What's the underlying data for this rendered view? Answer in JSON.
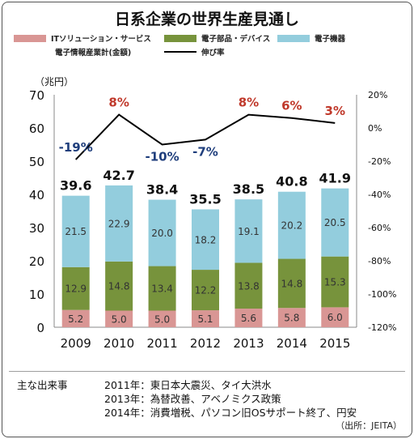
{
  "chart_data": {
    "type": "bar",
    "title": "日系企業の世界生産見通し",
    "y_unit_label": "（兆円）",
    "categories": [
      "2009",
      "2010",
      "2011",
      "2012",
      "2013",
      "2014",
      "2015"
    ],
    "series": [
      {
        "name": "ITソリューション・サービス",
        "color": "#d99694",
        "values": [
          5.2,
          5.0,
          5.0,
          5.1,
          5.6,
          5.8,
          6.0
        ]
      },
      {
        "name": "電子部品・デバイス",
        "color": "#77933c",
        "values": [
          12.9,
          14.8,
          13.4,
          12.2,
          13.8,
          14.8,
          15.3
        ]
      },
      {
        "name": "電子機器",
        "color": "#93cddd",
        "values": [
          21.5,
          22.9,
          20.0,
          18.2,
          19.1,
          20.2,
          20.5
        ]
      }
    ],
    "totals": [
      "39.6",
      "42.7",
      "38.4",
      "35.5",
      "38.5",
      "40.8",
      "41.9"
    ],
    "line": {
      "name": "電子情報産業計(金額)　伸び率",
      "legend_left": "電子情報産業計(金額)",
      "legend_right": "伸び率",
      "color": "#000000",
      "values": [
        -19,
        8,
        -10,
        -7,
        8,
        6,
        3
      ],
      "labels": [
        "-19%",
        "8%",
        "-10%",
        "-7%",
        "8%",
        "6%",
        "3%"
      ],
      "label_colors": [
        "#1f3e7c",
        "#c0392b",
        "#1f3e7c",
        "#1f3e7c",
        "#c0392b",
        "#c0392b",
        "#c0392b"
      ]
    },
    "y_left": {
      "min": 0,
      "max": 70,
      "ticks": [
        "0",
        "10",
        "20",
        "30",
        "40",
        "50",
        "60",
        "70"
      ]
    },
    "y_right": {
      "min": -120,
      "max": 20,
      "ticks": [
        "-120%",
        "-100%",
        "-80%",
        "-60%",
        "-40%",
        "-20%",
        "0%",
        "20%"
      ]
    },
    "legend_position": "top"
  },
  "events": {
    "heading": "主な出来事",
    "items": [
      "2011年：東日本大震災、タイ大洪水",
      "2013年：為替改善、アベノミクス政策",
      "2014年：消費増税、パソコン旧OSサポート終了、円安"
    ]
  },
  "source": "（出所：JEITA）"
}
